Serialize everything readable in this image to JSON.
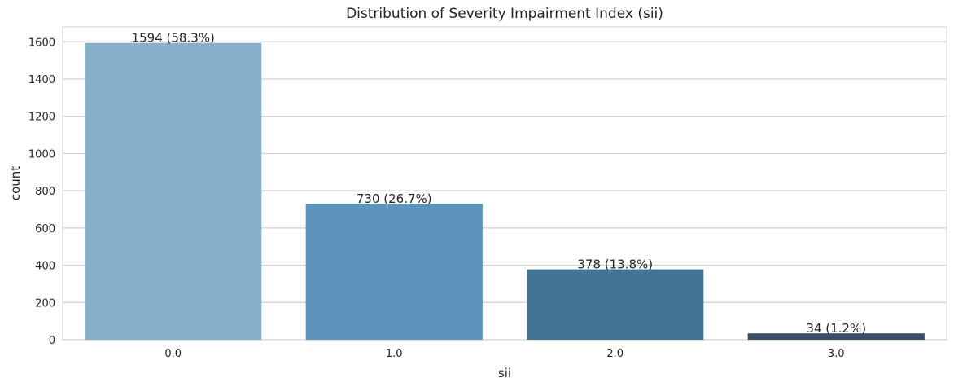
{
  "chart_data": {
    "type": "bar",
    "title": "Distribution of Severity Impairment Index (sii)",
    "xlabel": "sii",
    "ylabel": "count",
    "categories": [
      "0.0",
      "1.0",
      "2.0",
      "3.0"
    ],
    "values": [
      1594,
      730,
      378,
      34
    ],
    "data_labels": [
      "1594 (58.3%)",
      "730 (26.7%)",
      "378 (13.8%)",
      "34 (1.2%)"
    ],
    "ylim": [
      0,
      1680
    ],
    "yticks": [
      0,
      200,
      400,
      600,
      800,
      1000,
      1200,
      1400,
      1600
    ],
    "grid": true,
    "colors": [
      "#88b0cc",
      "#5d94bb",
      "#447495",
      "#364f66"
    ],
    "background": "#ffffff",
    "grid_color": "#d0d0d0"
  }
}
